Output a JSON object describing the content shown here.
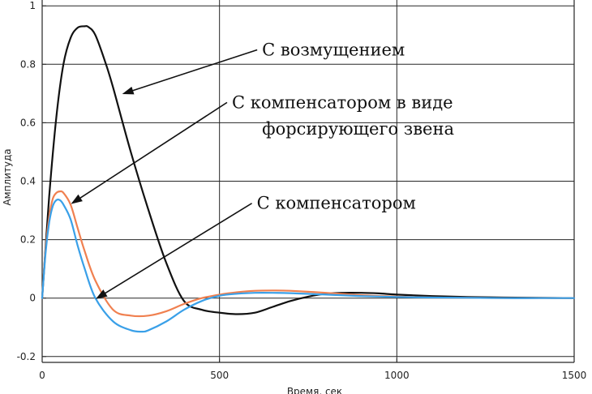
{
  "chart_data": {
    "type": "line",
    "xlabel": "Время, сек",
    "ylabel": "Амплитуда",
    "xlim": [
      0,
      1500
    ],
    "ylim": [
      -0.22,
      1.02
    ],
    "grid": true,
    "x_ticks": [
      0,
      500,
      1000,
      1500
    ],
    "y_ticks": [
      -0.2,
      0,
      0.2,
      0.4,
      0.6,
      0.8,
      1
    ],
    "x_tick_labels": [
      "0",
      "500",
      "1000",
      "1500"
    ],
    "y_tick_labels": [
      "-0.2",
      "0",
      "0.2",
      "0.4",
      "0.6",
      "0.8",
      "1"
    ],
    "series": [
      {
        "color": "#111111",
        "x": [
          0,
          20,
          40,
          60,
          80,
          100,
          120,
          130,
          150,
          180,
          200,
          250,
          300,
          350,
          400,
          450,
          500,
          550,
          600,
          650,
          700,
          750,
          800,
          850,
          900,
          950,
          1000,
          1100,
          1200,
          1300,
          1400,
          1500
        ],
        "y": [
          0,
          0.35,
          0.62,
          0.8,
          0.89,
          0.925,
          0.93,
          0.928,
          0.9,
          0.8,
          0.72,
          0.5,
          0.3,
          0.12,
          -0.01,
          -0.04,
          -0.05,
          -0.055,
          -0.05,
          -0.03,
          -0.01,
          0.005,
          0.015,
          0.018,
          0.018,
          0.016,
          0.012,
          0.007,
          0.004,
          0.002,
          0.001,
          0
        ]
      },
      {
        "color": "#f08050",
        "x": [
          0,
          10,
          20,
          30,
          40,
          50,
          60,
          80,
          100,
          120,
          150,
          200,
          250,
          300,
          350,
          400,
          450,
          500,
          550,
          600,
          650,
          700,
          800,
          900,
          1000,
          1100,
          1200,
          1300,
          1400,
          1500
        ],
        "y": [
          0,
          0.17,
          0.28,
          0.34,
          0.36,
          0.365,
          0.36,
          0.32,
          0.24,
          0.16,
          0.06,
          -0.04,
          -0.06,
          -0.06,
          -0.045,
          -0.02,
          0.0,
          0.012,
          0.02,
          0.025,
          0.026,
          0.025,
          0.018,
          0.01,
          0.005,
          0.002,
          0.001,
          0,
          0,
          0
        ]
      },
      {
        "color": "#3aa0e8",
        "x": [
          0,
          10,
          20,
          30,
          40,
          50,
          60,
          80,
          100,
          120,
          150,
          200,
          250,
          280,
          300,
          350,
          400,
          450,
          500,
          550,
          600,
          650,
          700,
          800,
          900,
          1000,
          1100,
          1200,
          1300,
          1400,
          1500
        ],
        "y": [
          0,
          0.16,
          0.26,
          0.315,
          0.335,
          0.335,
          0.32,
          0.27,
          0.18,
          0.1,
          0.0,
          -0.08,
          -0.11,
          -0.115,
          -0.11,
          -0.08,
          -0.04,
          -0.01,
          0.008,
          0.015,
          0.018,
          0.018,
          0.017,
          0.012,
          0.007,
          0.004,
          0.002,
          0.001,
          0,
          0,
          0
        ]
      }
    ],
    "annotations": [
      {
        "text": "С возмущением",
        "x_data": 620,
        "y_data": 0.83,
        "arrow_to": [
          230,
          0.7
        ]
      },
      {
        "text": "С компенсатором в виде",
        "x_data": 535,
        "y_data": 0.65,
        "arrow_to": [
          85,
          0.325
        ]
      },
      {
        "text": "форсирующего звена",
        "x_data": 620,
        "y_data": 0.56,
        "arrow_to": null
      },
      {
        "text": "С компенсатором",
        "x_data": 605,
        "y_data": 0.305,
        "arrow_to": [
          155,
          0.0
        ]
      }
    ]
  }
}
